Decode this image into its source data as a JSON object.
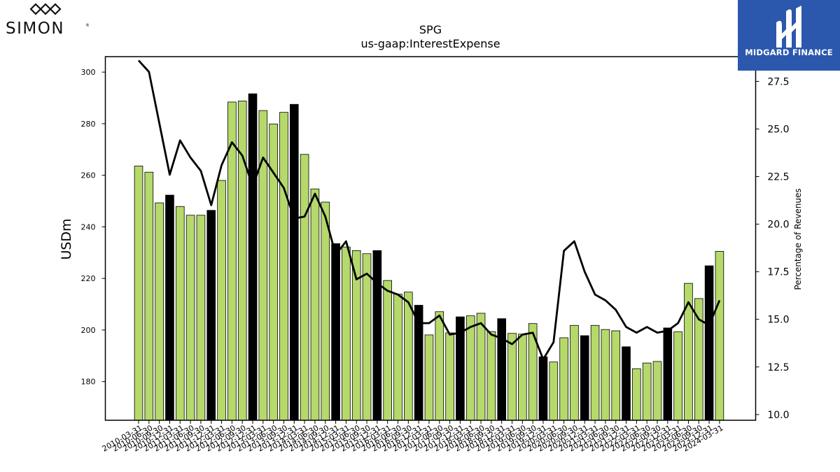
{
  "brand": {
    "left_logo_text": "SIMON",
    "left_logo_mark": "®",
    "right_logo_text": "MIDGARD FINANCE"
  },
  "chart_data": {
    "type": "bar",
    "title": "SPG",
    "subtitle": "us-gaap:InterestExpense",
    "ylabel": "USDm",
    "y2label": "Percentage of Revenues",
    "ylim": [
      165,
      306
    ],
    "y2lim": [
      9.7,
      28.8
    ],
    "yticks": [
      180,
      200,
      220,
      240,
      260,
      280,
      300
    ],
    "y2ticks": [
      "10.0",
      "12.5",
      "15.0",
      "17.5",
      "20.0",
      "22.5",
      "25.0",
      "27.5"
    ],
    "categories": [
      "2010-03-31",
      "2010-06-30",
      "2010-09-30",
      "2010-12-31",
      "2011-03-31",
      "2011-06-30",
      "2011-09-30",
      "2011-12-31",
      "2012-03-31",
      "2012-06-30",
      "2012-09-30",
      "2012-12-31",
      "2013-03-31",
      "2013-06-30",
      "2013-09-30",
      "2013-12-31",
      "2014-03-31",
      "2014-06-30",
      "2014-09-30",
      "2014-12-31",
      "2015-03-31",
      "2015-06-30",
      "2015-09-30",
      "2015-12-31",
      "2016-03-31",
      "2016-06-30",
      "2016-09-30",
      "2016-12-31",
      "2017-03-31",
      "2017-06-30",
      "2017-09-30",
      "2017-12-31",
      "2018-03-31",
      "2018-06-30",
      "2018-09-30",
      "2018-12-31",
      "2019-03-31",
      "2019-06-30",
      "2019-09-30",
      "2019-12-31",
      "2020-03-31",
      "2020-06-30",
      "2020-09-30",
      "2020-12-31",
      "2021-03-31",
      "2021-06-30",
      "2021-09-30",
      "2021-12-31",
      "2022-03-31",
      "2022-06-30",
      "2022-09-30",
      "2022-12-31",
      "2023-03-31",
      "2023-06-30",
      "2023-09-30",
      "2023-12-31",
      "2024-03-31"
    ],
    "series": [
      {
        "name": "",
        "type": "bar",
        "values": [
          263.6,
          261.2,
          249.3,
          252.3,
          247.9,
          244.5,
          244.5,
          246.4,
          258.0,
          288.4,
          288.8,
          291.6,
          285.1,
          279.9,
          284.4,
          287.5,
          268.1,
          254.7,
          249.6,
          233.5,
          232.2,
          230.8,
          229.6,
          230.8,
          219.2,
          213.9,
          214.7,
          209.6,
          198.1,
          207.1,
          198.9,
          205.1,
          205.5,
          206.5,
          199.4,
          204.4,
          198.7,
          198.4,
          202.5,
          189.6,
          187.6,
          197.0,
          201.8,
          197.8,
          201.8,
          200.2,
          199.7,
          193.5,
          185.0,
          187.2,
          187.8,
          200.8,
          199.3,
          218.1,
          212.2,
          224.9,
          230.5
        ],
        "highlight_color": "#000000",
        "base_color": "#b5d96a"
      },
      {
        "name": "",
        "type": "line",
        "axis": "right",
        "values": [
          28.6,
          28.0,
          25.3,
          22.6,
          24.4,
          23.5,
          22.8,
          21.0,
          23.1,
          24.3,
          23.6,
          22.0,
          23.5,
          22.7,
          21.9,
          20.3,
          20.4,
          21.6,
          20.4,
          18.4,
          19.1,
          17.1,
          17.4,
          16.9,
          16.5,
          16.3,
          15.9,
          14.8,
          14.8,
          15.2,
          14.2,
          14.3,
          14.6,
          14.8,
          14.2,
          14.0,
          13.7,
          14.2,
          14.3,
          12.9,
          13.8,
          18.6,
          19.1,
          17.5,
          16.3,
          16.0,
          15.5,
          14.6,
          14.3,
          14.6,
          14.3,
          14.4,
          14.8,
          15.9,
          15.0,
          14.7,
          16.0
        ]
      }
    ]
  }
}
